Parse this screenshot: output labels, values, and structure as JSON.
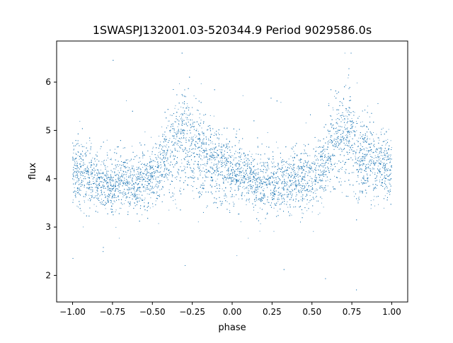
{
  "chart_data": {
    "type": "scatter",
    "title": "1SWASPJ132001.03-520344.9 Period 9029586.0s",
    "xlabel": "phase",
    "ylabel": "flux",
    "xlim": [
      -1.1,
      1.1
    ],
    "ylim": [
      1.45,
      6.85
    ],
    "xticks": [
      -1.0,
      -0.75,
      -0.5,
      -0.25,
      0.0,
      0.25,
      0.5,
      0.75,
      1.0
    ],
    "xtick_labels": [
      "−1.00",
      "−0.75",
      "−0.50",
      "−0.25",
      "0.00",
      "0.25",
      "0.50",
      "0.75",
      "1.00"
    ],
    "yticks": [
      2,
      3,
      4,
      5,
      6
    ],
    "ytick_labels": [
      "2",
      "3",
      "4",
      "5",
      "6"
    ],
    "grid": false,
    "legend": "none",
    "marker_color": "#1f77b4",
    "phase_profile": {
      "phase": [
        0.0,
        0.05,
        0.1,
        0.15,
        0.2,
        0.25,
        0.3,
        0.35,
        0.4,
        0.45,
        0.5,
        0.55,
        0.6,
        0.65,
        0.7,
        0.75,
        0.8,
        0.85,
        0.9,
        0.95,
        1.0
      ],
      "median_flux": [
        4.2,
        4.1,
        4.0,
        3.95,
        3.9,
        3.9,
        3.95,
        3.95,
        3.95,
        4.0,
        4.05,
        4.2,
        4.45,
        4.8,
        4.9,
        4.75,
        4.5,
        4.35,
        4.25,
        4.25,
        4.2
      ],
      "scatter": [
        0.35,
        0.33,
        0.3,
        0.3,
        0.3,
        0.3,
        0.3,
        0.3,
        0.3,
        0.3,
        0.3,
        0.35,
        0.4,
        0.55,
        0.55,
        0.5,
        0.45,
        0.4,
        0.4,
        0.38,
        0.35
      ]
    },
    "flux_range": [
      1.7,
      6.6
    ]
  }
}
